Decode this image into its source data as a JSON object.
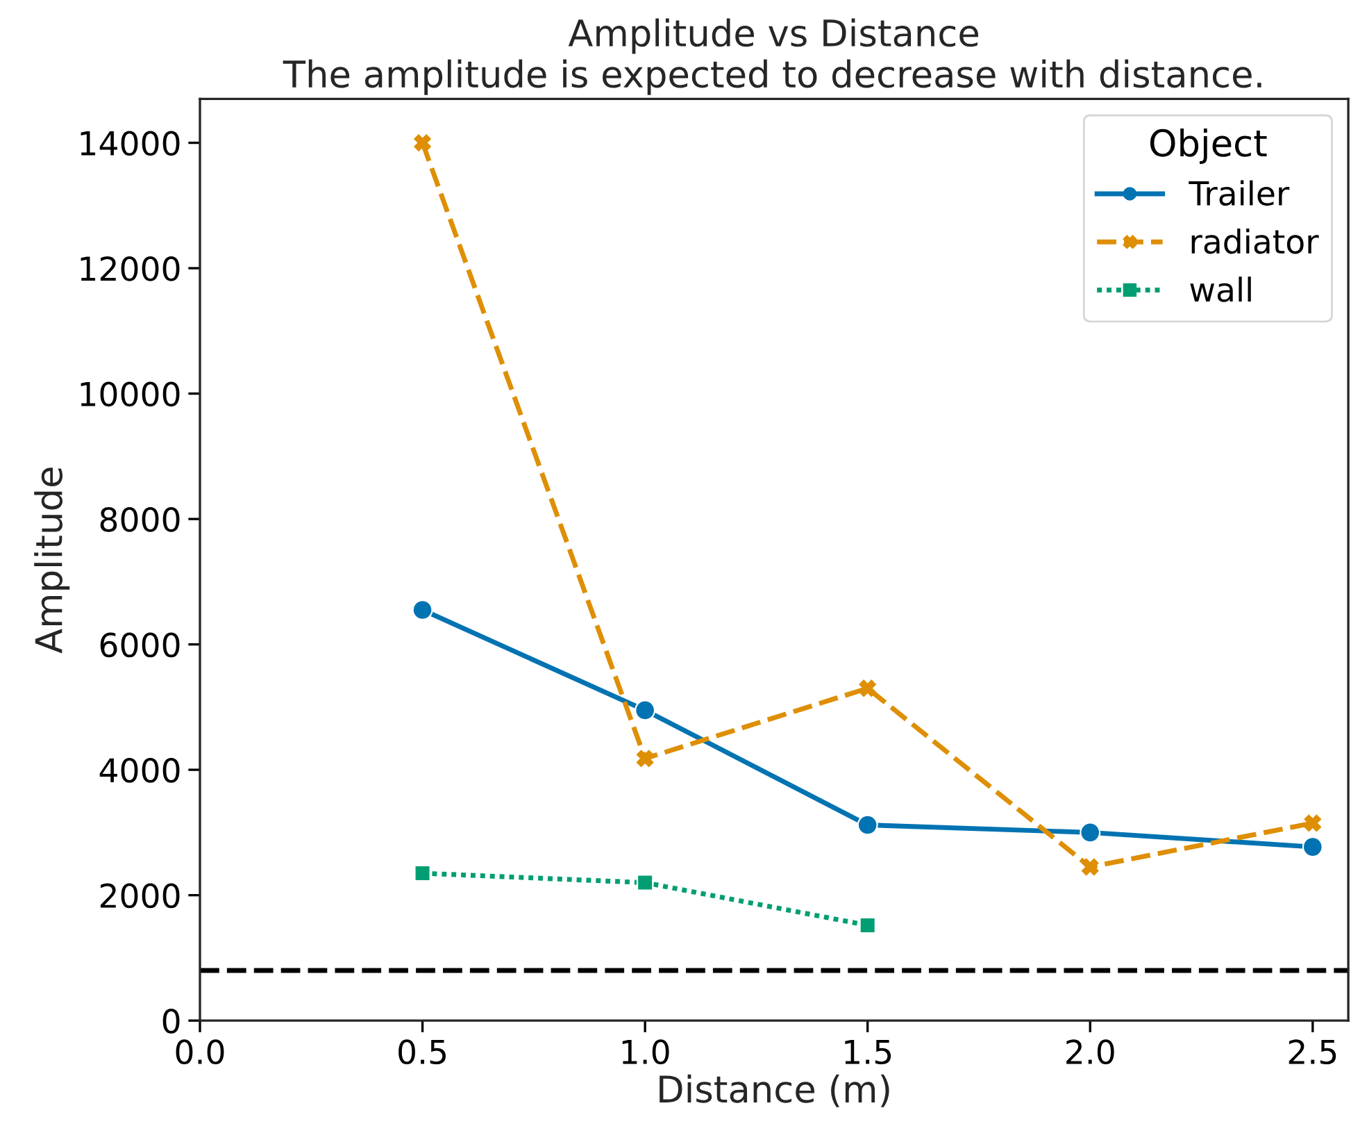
{
  "chart_data": {
    "type": "line",
    "title": "Amplitude vs Distance\nThe amplitude is expected to decrease with distance.",
    "xlabel": "Distance (m)",
    "ylabel": "Amplitude",
    "legend_title": "Object",
    "x": [
      0.5,
      1.0,
      1.5,
      2.0,
      2.5
    ],
    "series": [
      {
        "name": "Trailer",
        "color": "#0173b2",
        "marker": "circle",
        "line_style": "solid",
        "values": [
          6550,
          4950,
          3120,
          3000,
          2770
        ]
      },
      {
        "name": "radiator",
        "color": "#de8f05",
        "marker": "cross",
        "line_style": "dashed",
        "values": [
          14000,
          4180,
          5300,
          2450,
          3150
        ]
      },
      {
        "name": "wall",
        "color": "#029e73",
        "marker": "square",
        "line_style": "dotted",
        "values": [
          2350,
          2200,
          1520,
          null,
          null
        ]
      }
    ],
    "ref_lines": [
      {
        "axis": "y",
        "value": 800,
        "color": "#000000",
        "line_style": "dashed"
      }
    ],
    "xlim": [
      0.0,
      2.58
    ],
    "xticks": [
      {
        "value": 0.0,
        "label": "0.0"
      },
      0.5,
      {
        "value": 1.0,
        "label": "1.0"
      },
      1.5,
      {
        "value": 2.0,
        "label": "2.0"
      },
      2.5
    ],
    "ylim": [
      0,
      14700
    ],
    "yticks": [
      0,
      2000,
      4000,
      6000,
      8000,
      10000,
      12000,
      14000
    ],
    "grid": false,
    "legend": "top right"
  }
}
